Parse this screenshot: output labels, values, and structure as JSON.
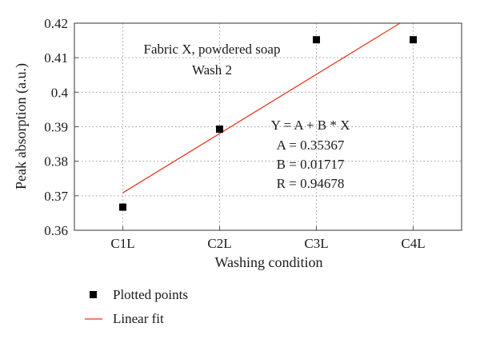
{
  "chart_data": {
    "type": "scatter",
    "xlabel": "Washing condition",
    "ylabel": "Peak absorption (a.u.)",
    "categories": [
      "C1L",
      "C2L",
      "C3L",
      "C4L"
    ],
    "ylim": [
      0.36,
      0.42
    ],
    "yticks": [
      "0.36",
      "0.37",
      "0.38",
      "0.39",
      "0.4",
      "0.41",
      "0.42"
    ],
    "grid": true,
    "series": [
      {
        "name": "Plotted points",
        "kind": "points",
        "color": "#000000",
        "values": [
          0.3667,
          0.3893,
          0.4152,
          0.4152
        ]
      },
      {
        "name": "Linear fit",
        "kind": "line",
        "color": "#e8371a",
        "fit": {
          "intercept": 0.35367,
          "slope": 0.01717
        }
      }
    ],
    "annotation_title": [
      "Fabric X, powdered soap",
      "Wash 2"
    ],
    "annotation_fit": {
      "equation": "Y = A + B * X",
      "a": "A = 0.35367",
      "b": "B = 0.01717",
      "r": "R = 0.94678"
    },
    "legend_position": "bottom-left"
  }
}
